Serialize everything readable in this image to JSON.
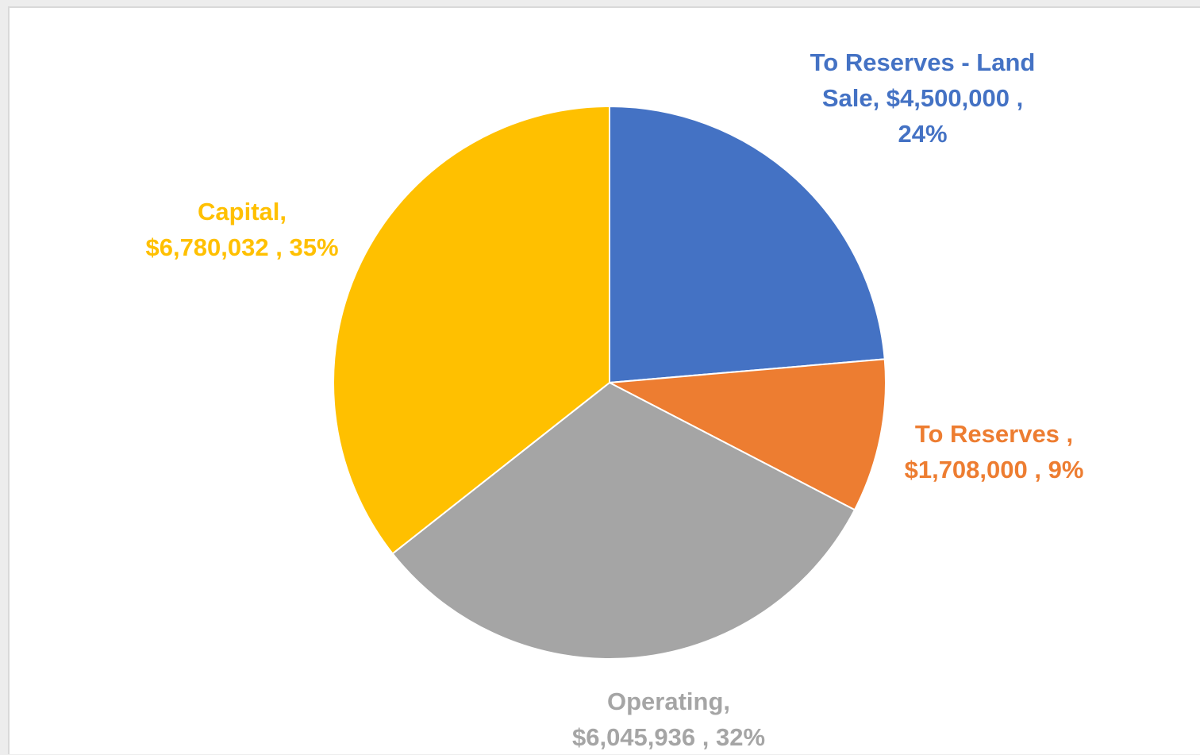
{
  "chart_data": {
    "type": "pie",
    "title": "",
    "start_angle_deg": 0,
    "direction": "clockwise",
    "slices": [
      {
        "name": "To Reserves - Land Sale",
        "value": 4500000,
        "percent": 24,
        "color": "#4472C4",
        "label_lines": [
          "To Reserves - Land",
          "Sale,  $4,500,000 ,",
          "24%"
        ]
      },
      {
        "name": "To Reserves",
        "value": 1708000,
        "percent": 9,
        "color": "#ED7D31",
        "label_lines": [
          "To Reserves  ,",
          "$1,708,000 , 9%"
        ]
      },
      {
        "name": "Operating",
        "value": 6045936,
        "percent": 32,
        "color": "#A5A5A5",
        "label_lines": [
          "Operating,",
          "$6,045,936 , 32%"
        ]
      },
      {
        "name": "Capital",
        "value": 6780032,
        "percent": 35,
        "color": "#FFC000",
        "label_lines": [
          "Capital,",
          "$6,780,032 , 35%"
        ]
      }
    ]
  }
}
